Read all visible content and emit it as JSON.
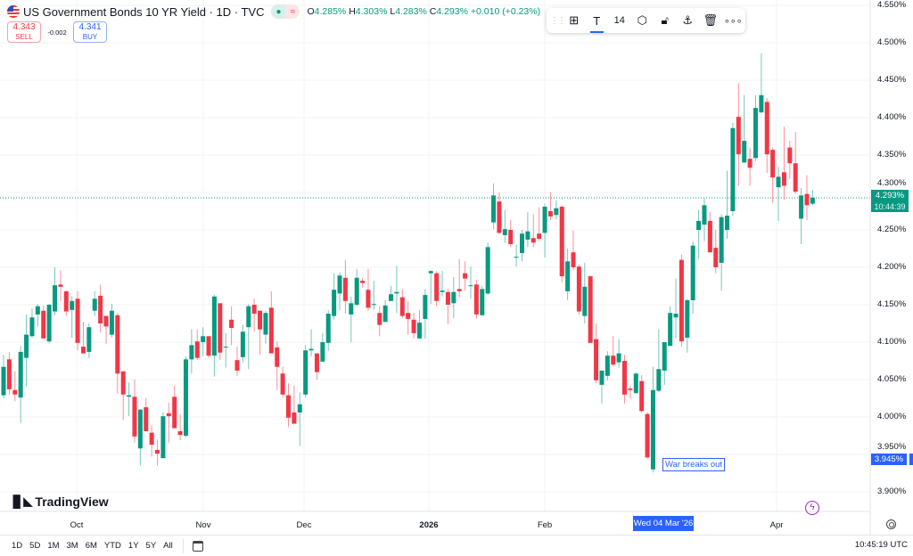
{
  "header": {
    "title": "US Government Bonds 10 YR Yield · 1D · TVC",
    "open_label": "O",
    "open": "4.285%",
    "high_label": "H",
    "high": "4.303%",
    "low_label": "L",
    "low": "4.283%",
    "close_label": "C",
    "close": "4.293%",
    "change": "+0.010 (+0.23%)"
  },
  "trade": {
    "sell_price": "4.343",
    "sell_label": "SELL",
    "spread": "-0.002",
    "buy_price": "4.341",
    "buy_label": "BUY"
  },
  "toolbar": {
    "font_size": "14",
    "icons": [
      "drag-handle",
      "add-to-group",
      "text-color",
      "settings",
      "lock",
      "anchor",
      "delete",
      "more"
    ]
  },
  "price_axis": {
    "labels": [
      "4.550%",
      "4.500%",
      "4.450%",
      "4.400%",
      "4.350%",
      "4.300%",
      "4.250%",
      "4.200%",
      "4.150%",
      "4.100%",
      "4.050%",
      "4.000%",
      "3.950%",
      "3.900%"
    ],
    "current_price": "4.293%",
    "countdown": "10:44:39",
    "marker_price": "3.945%"
  },
  "time_axis": {
    "labels": [
      "Oct",
      "Nov",
      "Dec",
      "2026",
      "Feb",
      "Apr"
    ],
    "crosshair_date": "Wed 04 Mar '26"
  },
  "annotation": "War breaks out",
  "logo": "TradingView",
  "ranges": [
    "1D",
    "5D",
    "1M",
    "3M",
    "6M",
    "YTD",
    "1Y",
    "5Y",
    "All"
  ],
  "clock": "10:45:19 UTC",
  "colors": {
    "up": "#089981",
    "down": "#f23645",
    "accent": "#2962ff"
  },
  "chart_data": {
    "type": "candlestick",
    "ylim": [
      3.88,
      4.56
    ],
    "y_unit": "%",
    "grid": true,
    "candles_ohlc": [
      [
        4.029,
        4.083,
        4.025,
        4.067
      ],
      [
        4.077,
        4.087,
        4.03,
        4.037
      ],
      [
        4.036,
        4.061,
        4.021,
        4.03
      ],
      [
        4.026,
        4.095,
        3.992,
        4.087
      ],
      [
        4.079,
        4.137,
        4.041,
        4.11
      ],
      [
        4.108,
        4.145,
        4.106,
        4.133
      ],
      [
        4.137,
        4.151,
        4.121,
        4.148
      ],
      [
        4.142,
        4.149,
        4.105,
        4.105
      ],
      [
        4.101,
        4.151,
        4.098,
        4.15
      ],
      [
        4.141,
        4.2,
        4.136,
        4.176
      ],
      [
        4.177,
        4.196,
        4.155,
        4.174
      ],
      [
        4.168,
        4.168,
        4.135,
        4.141
      ],
      [
        4.143,
        4.161,
        4.106,
        4.155
      ],
      [
        4.158,
        4.168,
        4.089,
        4.099
      ],
      [
        4.094,
        4.127,
        4.085,
        4.085
      ],
      [
        4.087,
        4.125,
        4.079,
        4.12
      ],
      [
        4.142,
        4.168,
        4.135,
        4.158
      ],
      [
        4.162,
        4.177,
        4.113,
        4.125
      ],
      [
        4.135,
        4.135,
        4.098,
        4.121
      ],
      [
        4.11,
        4.151,
        4.106,
        4.142
      ],
      [
        4.136,
        4.139,
        4.031,
        4.058
      ],
      [
        4.061,
        4.061,
        3.996,
        4.03
      ],
      [
        4.027,
        4.046,
        4.001,
        4.029
      ],
      [
        4.027,
        4.05,
        3.966,
        3.974
      ],
      [
        3.958,
        4.01,
        3.935,
        4.01
      ],
      [
        4.013,
        4.025,
        3.981,
        3.981
      ],
      [
        3.979,
        3.989,
        3.947,
        3.963
      ],
      [
        3.956,
        3.97,
        3.935,
        3.951
      ],
      [
        3.945,
        4.006,
        3.945,
        4.001
      ],
      [
        4.005,
        4.019,
        3.966,
        4.001
      ],
      [
        4.027,
        4.042,
        3.985,
        3.985
      ],
      [
        3.981,
        4.004,
        3.969,
        3.976
      ],
      [
        3.975,
        4.081,
        3.973,
        4.077
      ],
      [
        4.077,
        4.117,
        4.058,
        4.096
      ],
      [
        4.101,
        4.117,
        4.076,
        4.079
      ],
      [
        4.1,
        4.12,
        4.081,
        4.108
      ],
      [
        4.108,
        4.108,
        4.079,
        4.082
      ],
      [
        4.082,
        4.163,
        4.054,
        4.161
      ],
      [
        4.152,
        4.152,
        4.076,
        4.086
      ],
      [
        4.093,
        4.112,
        4.066,
        4.094
      ],
      [
        4.13,
        4.148,
        4.096,
        4.119
      ],
      [
        4.076,
        4.094,
        4.055,
        4.062
      ],
      [
        4.08,
        4.123,
        4.073,
        4.114
      ],
      [
        4.12,
        4.151,
        4.064,
        4.148
      ],
      [
        4.15,
        4.158,
        4.114,
        4.138
      ],
      [
        4.142,
        4.142,
        4.083,
        4.117
      ],
      [
        4.11,
        4.142,
        4.098,
        4.139
      ],
      [
        4.146,
        4.168,
        4.085,
        4.085
      ],
      [
        4.093,
        4.101,
        4.036,
        4.067
      ],
      [
        4.058,
        4.067,
        4.026,
        4.03
      ],
      [
        4.029,
        4.045,
        3.987,
        3.999
      ],
      [
        4.006,
        4.042,
        3.991,
        3.991
      ],
      [
        4.006,
        4.033,
        3.961,
        4.017
      ],
      [
        4.03,
        4.096,
        4.026,
        4.089
      ],
      [
        4.089,
        4.117,
        4.081,
        4.091
      ],
      [
        4.085,
        4.085,
        4.05,
        4.06
      ],
      [
        4.074,
        4.112,
        4.073,
        4.1
      ],
      [
        4.099,
        4.143,
        4.088,
        4.138
      ],
      [
        4.135,
        4.192,
        4.13,
        4.17
      ],
      [
        4.165,
        4.193,
        4.142,
        4.189
      ],
      [
        4.186,
        4.21,
        4.138,
        4.155
      ],
      [
        4.137,
        4.161,
        4.1,
        4.152
      ],
      [
        4.15,
        4.198,
        4.148,
        4.186
      ],
      [
        4.182,
        4.186,
        4.173,
        4.179
      ],
      [
        4.17,
        4.198,
        4.142,
        4.146
      ],
      [
        4.15,
        4.182,
        4.143,
        4.151
      ],
      [
        4.139,
        4.148,
        4.108,
        4.123
      ],
      [
        4.127,
        4.156,
        4.127,
        4.149
      ],
      [
        4.155,
        4.175,
        4.155,
        4.164
      ],
      [
        4.165,
        4.202,
        4.139,
        4.167
      ],
      [
        4.16,
        4.171,
        4.132,
        4.135
      ],
      [
        4.139,
        4.155,
        4.11,
        4.131
      ],
      [
        4.13,
        4.139,
        4.105,
        4.112
      ],
      [
        4.105,
        4.143,
        4.105,
        4.126
      ],
      [
        4.131,
        4.171,
        4.105,
        4.163
      ],
      [
        4.192,
        4.196,
        4.151,
        4.195
      ],
      [
        4.192,
        4.195,
        4.148,
        4.155
      ],
      [
        4.167,
        4.195,
        4.161,
        4.169
      ],
      [
        4.167,
        4.171,
        4.124,
        4.15
      ],
      [
        4.152,
        4.187,
        4.132,
        4.167
      ],
      [
        4.171,
        4.211,
        4.16,
        4.168
      ],
      [
        4.192,
        4.208,
        4.169,
        4.185
      ],
      [
        4.175,
        4.201,
        4.158,
        4.176
      ],
      [
        4.177,
        4.183,
        4.131,
        4.137
      ],
      [
        4.136,
        4.175,
        4.135,
        4.171
      ],
      [
        4.165,
        4.233,
        4.163,
        4.227
      ],
      [
        4.26,
        4.312,
        4.251,
        4.296
      ],
      [
        4.288,
        4.3,
        4.244,
        4.246
      ],
      [
        4.243,
        4.276,
        4.233,
        4.251
      ],
      [
        4.25,
        4.263,
        4.227,
        4.231
      ],
      [
        4.213,
        4.23,
        4.201,
        4.214
      ],
      [
        4.219,
        4.25,
        4.208,
        4.245
      ],
      [
        4.237,
        4.274,
        4.227,
        4.248
      ],
      [
        4.239,
        4.271,
        4.227,
        4.233
      ],
      [
        4.245,
        4.28,
        4.235,
        4.238
      ],
      [
        4.246,
        4.285,
        4.213,
        4.281
      ],
      [
        4.275,
        4.3,
        4.263,
        4.268
      ],
      [
        4.27,
        4.289,
        4.264,
        4.279
      ],
      [
        4.281,
        4.283,
        4.18,
        4.188
      ],
      [
        4.168,
        4.225,
        4.156,
        4.208
      ],
      [
        4.22,
        4.249,
        4.196,
        4.2
      ],
      [
        4.201,
        4.204,
        4.137,
        4.141
      ],
      [
        4.135,
        4.206,
        4.125,
        4.174
      ],
      [
        4.188,
        4.189,
        4.099,
        4.099
      ],
      [
        4.104,
        4.125,
        4.045,
        4.049
      ],
      [
        4.043,
        4.062,
        4.018,
        4.062
      ],
      [
        4.055,
        4.088,
        4.049,
        4.082
      ],
      [
        4.082,
        4.108,
        4.067,
        4.07
      ],
      [
        4.073,
        4.104,
        4.066,
        4.085
      ],
      [
        4.075,
        4.083,
        4.018,
        4.03
      ],
      [
        4.038,
        4.042,
        4.025,
        4.036
      ],
      [
        4.032,
        4.06,
        4.031,
        4.058
      ],
      [
        4.048,
        4.056,
        4.006,
        4.008
      ],
      [
        4.004,
        4.006,
        3.944,
        3.946
      ],
      [
        3.93,
        4.067,
        3.926,
        4.036
      ],
      [
        4.035,
        4.117,
        4.033,
        4.064
      ],
      [
        4.062,
        4.1,
        4.043,
        4.1
      ],
      [
        4.095,
        4.148,
        4.095,
        4.139
      ],
      [
        4.133,
        4.185,
        4.105,
        4.138
      ],
      [
        4.21,
        4.217,
        4.094,
        4.101
      ],
      [
        4.106,
        4.158,
        4.086,
        4.156
      ],
      [
        4.156,
        4.235,
        4.138,
        4.229
      ],
      [
        4.25,
        4.277,
        4.211,
        4.262
      ],
      [
        4.257,
        4.292,
        4.235,
        4.283
      ],
      [
        4.262,
        4.274,
        4.22,
        4.22
      ],
      [
        4.226,
        4.25,
        4.192,
        4.2
      ],
      [
        4.206,
        4.271,
        4.169,
        4.267
      ],
      [
        4.25,
        4.329,
        4.238,
        4.269
      ],
      [
        4.275,
        4.393,
        4.269,
        4.386
      ],
      [
        4.401,
        4.446,
        4.309,
        4.351
      ],
      [
        4.34,
        4.43,
        4.34,
        4.369
      ],
      [
        4.345,
        4.36,
        4.309,
        4.333
      ],
      [
        4.346,
        4.43,
        4.342,
        4.413
      ],
      [
        4.407,
        4.486,
        4.406,
        4.43
      ],
      [
        4.421,
        4.426,
        4.326,
        4.351
      ],
      [
        4.357,
        4.36,
        4.286,
        4.32
      ],
      [
        4.307,
        4.334,
        4.262,
        4.321
      ],
      [
        4.327,
        4.388,
        4.29,
        4.309
      ],
      [
        4.36,
        4.369,
        4.318,
        4.339
      ],
      [
        4.339,
        4.381,
        4.298,
        4.301
      ],
      [
        4.265,
        4.306,
        4.231,
        4.296
      ],
      [
        4.298,
        4.323,
        4.263,
        4.283
      ],
      [
        4.285,
        4.303,
        4.283,
        4.293
      ]
    ],
    "last_price": 4.293
  }
}
